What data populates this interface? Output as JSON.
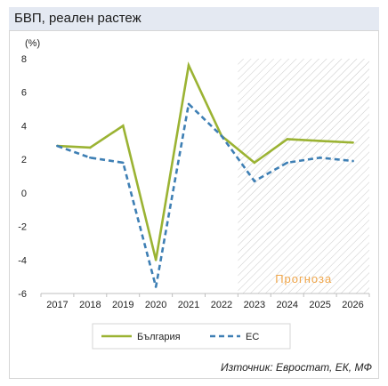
{
  "title": "БВП, реален растеж",
  "source": "Източник: Евростат, ЕК, МФ",
  "chart_data": {
    "type": "line",
    "unit_label": "(%)",
    "x": [
      "2017",
      "2018",
      "2019",
      "2020",
      "2021",
      "2022",
      "2023",
      "2024",
      "2025",
      "2026"
    ],
    "ylim": [
      -6,
      8
    ],
    "yticks": [
      -6,
      -4,
      -2,
      0,
      2,
      4,
      6,
      8
    ],
    "forecast_label": "Прогноза",
    "forecast_start": "2023",
    "grid": false,
    "legend_position": "bottom",
    "series": [
      {
        "name": "България",
        "color": "#9bb333",
        "dash": false,
        "values": [
          2.8,
          2.7,
          4.0,
          -4.0,
          7.6,
          3.4,
          1.8,
          3.2,
          3.1,
          3.0
        ]
      },
      {
        "name": "ЕС",
        "color": "#3e7fb4",
        "dash": true,
        "values": [
          2.8,
          2.1,
          1.8,
          -5.6,
          5.3,
          3.4,
          0.7,
          1.8,
          2.1,
          1.9
        ]
      }
    ]
  }
}
